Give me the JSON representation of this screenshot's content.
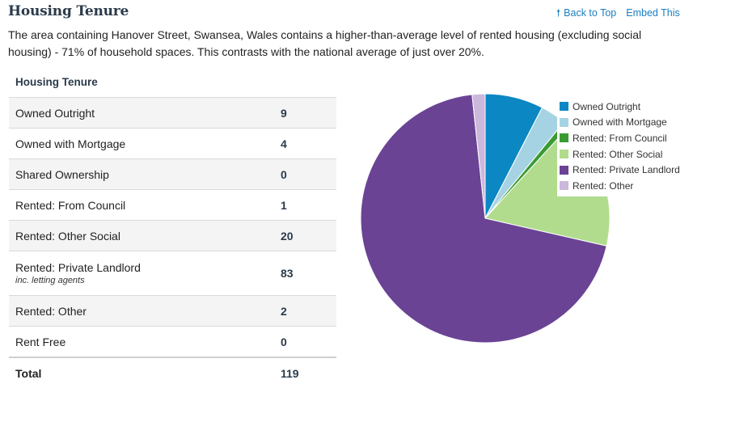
{
  "header": {
    "title": "Housing Tenure",
    "back_to_top": "Back to Top",
    "embed": "Embed This",
    "arrow_glyph": "🠕"
  },
  "description": "The area containing Hanover Street, Swansea, Wales contains a higher-than-average level of rented housing (excluding social housing) - 71% of household spaces. This contrasts with the national average of just over 20%.",
  "table": {
    "title": "Housing Tenure",
    "rows": [
      {
        "label": "Owned Outright",
        "value": "9"
      },
      {
        "label": "Owned with Mortgage",
        "value": "4"
      },
      {
        "label": "Shared Ownership",
        "value": "0"
      },
      {
        "label": "Rented: From Council",
        "value": "1"
      },
      {
        "label": "Rented: Other Social",
        "value": "20"
      },
      {
        "label": "Rented: Private Landlord",
        "note": "inc. letting agents",
        "value": "83"
      },
      {
        "label": "Rented: Other",
        "value": "2"
      },
      {
        "label": "Rent Free",
        "value": "0"
      }
    ],
    "total": {
      "label": "Total",
      "value": "119"
    }
  },
  "chart_data": {
    "type": "pie",
    "title": "",
    "legend_position": "top-right",
    "slices": [
      {
        "label": "Owned Outright",
        "value": 9,
        "color": "#0b87c4"
      },
      {
        "label": "Owned with Mortgage",
        "value": 4,
        "color": "#a6d3e3"
      },
      {
        "label": "Rented: From Council",
        "value": 1,
        "color": "#3a9b33"
      },
      {
        "label": "Rented: Other Social",
        "value": 20,
        "color": "#b1dc8e"
      },
      {
        "label": "Rented: Private Landlord",
        "value": 83,
        "color": "#6a4395"
      },
      {
        "label": "Rented: Other",
        "value": 2,
        "color": "#cbb8db"
      }
    ]
  }
}
